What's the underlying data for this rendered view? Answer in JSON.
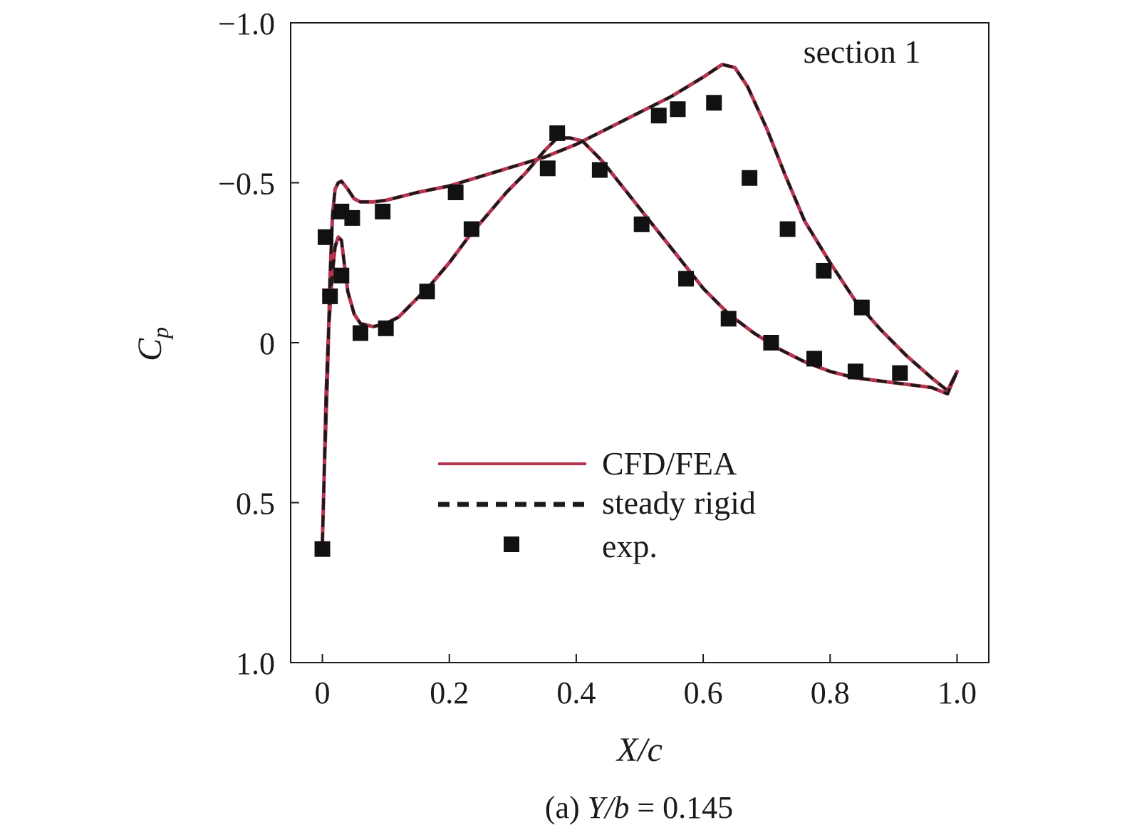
{
  "chart_data": {
    "type": "line",
    "title": "",
    "caption": {
      "prefix": "(a) ",
      "variable": "Y/b",
      "rest": " = 0.145"
    },
    "xlabel": "X/c",
    "ylabel": {
      "main": "C",
      "sub": "p"
    },
    "xlim": [
      -0.05,
      1.05
    ],
    "ylim": [
      1.0,
      -1.0
    ],
    "y_inverted": true,
    "grid": false,
    "x_ticks": [
      {
        "value": 0,
        "label": "0"
      },
      {
        "value": 0.2,
        "label": "0.2"
      },
      {
        "value": 0.4,
        "label": "0.4"
      },
      {
        "value": 0.6,
        "label": "0.6"
      },
      {
        "value": 0.8,
        "label": "0.8"
      },
      {
        "value": 1.0,
        "label": "1.0"
      }
    ],
    "y_ticks": [
      {
        "value": -1.0,
        "label": "−1.0"
      },
      {
        "value": -0.5,
        "label": "−0.5"
      },
      {
        "value": 0,
        "label": "0"
      },
      {
        "value": 0.5,
        "label": "0.5"
      },
      {
        "value": 1.0,
        "label": "1.0"
      }
    ],
    "annotation": "section 1",
    "legend_position": "center-right",
    "series": [
      {
        "name": "CFD/FEA",
        "style": "solid",
        "color": "#b5344f",
        "x": [
          0.0,
          0.003,
          0.008,
          0.012,
          0.016,
          0.02,
          0.025,
          0.03,
          0.04,
          0.05,
          0.06,
          0.08,
          0.1,
          0.12,
          0.15,
          0.2,
          0.25,
          0.3,
          0.35,
          0.4,
          0.45,
          0.5,
          0.55,
          0.6,
          0.63,
          0.65,
          0.67,
          0.7,
          0.73,
          0.76,
          0.8,
          0.84,
          0.88,
          0.92,
          0.96,
          0.985,
          1.0,
          1.0,
          0.985,
          0.96,
          0.92,
          0.88,
          0.84,
          0.8,
          0.76,
          0.72,
          0.68,
          0.64,
          0.6,
          0.56,
          0.52,
          0.48,
          0.44,
          0.41,
          0.39,
          0.37,
          0.35,
          0.32,
          0.29,
          0.26,
          0.23,
          0.2,
          0.17,
          0.14,
          0.12,
          0.1,
          0.08,
          0.06,
          0.05,
          0.04,
          0.035,
          0.03,
          0.025,
          0.02,
          0.015,
          0.01,
          0.006,
          0.003,
          0.0
        ],
        "y": [
          0.63,
          0.4,
          0.1,
          -0.2,
          -0.4,
          -0.48,
          -0.5,
          -0.505,
          -0.48,
          -0.45,
          -0.44,
          -0.44,
          -0.445,
          -0.455,
          -0.47,
          -0.49,
          -0.52,
          -0.55,
          -0.58,
          -0.62,
          -0.67,
          -0.72,
          -0.77,
          -0.83,
          -0.87,
          -0.86,
          -0.8,
          -0.67,
          -0.52,
          -0.38,
          -0.25,
          -0.13,
          -0.04,
          0.04,
          0.11,
          0.15,
          0.09,
          0.09,
          0.16,
          0.14,
          0.13,
          0.12,
          0.11,
          0.09,
          0.06,
          0.02,
          -0.03,
          -0.09,
          -0.17,
          -0.27,
          -0.37,
          -0.47,
          -0.57,
          -0.63,
          -0.64,
          -0.64,
          -0.6,
          -0.53,
          -0.47,
          -0.4,
          -0.33,
          -0.25,
          -0.18,
          -0.12,
          -0.08,
          -0.06,
          -0.05,
          -0.06,
          -0.09,
          -0.16,
          -0.24,
          -0.32,
          -0.33,
          -0.3,
          -0.2,
          -0.05,
          0.15,
          0.4,
          0.63
        ]
      },
      {
        "name": "steady rigid",
        "style": "dashed",
        "color": "#1a1a1a",
        "x": [
          0.0,
          0.003,
          0.008,
          0.012,
          0.016,
          0.02,
          0.025,
          0.03,
          0.04,
          0.05,
          0.06,
          0.08,
          0.1,
          0.12,
          0.15,
          0.2,
          0.25,
          0.3,
          0.35,
          0.4,
          0.45,
          0.5,
          0.55,
          0.6,
          0.63,
          0.65,
          0.67,
          0.7,
          0.73,
          0.76,
          0.8,
          0.84,
          0.88,
          0.92,
          0.96,
          0.985,
          1.0,
          1.0,
          0.985,
          0.96,
          0.92,
          0.88,
          0.84,
          0.8,
          0.76,
          0.72,
          0.68,
          0.64,
          0.6,
          0.56,
          0.52,
          0.48,
          0.44,
          0.41,
          0.39,
          0.37,
          0.35,
          0.32,
          0.29,
          0.26,
          0.23,
          0.2,
          0.17,
          0.14,
          0.12,
          0.1,
          0.08,
          0.06,
          0.05,
          0.04,
          0.035,
          0.03,
          0.025,
          0.02,
          0.015,
          0.01,
          0.006,
          0.003,
          0.0
        ],
        "y": [
          0.63,
          0.4,
          0.1,
          -0.2,
          -0.4,
          -0.48,
          -0.5,
          -0.505,
          -0.48,
          -0.45,
          -0.44,
          -0.44,
          -0.445,
          -0.455,
          -0.47,
          -0.49,
          -0.52,
          -0.55,
          -0.58,
          -0.62,
          -0.67,
          -0.72,
          -0.77,
          -0.83,
          -0.87,
          -0.86,
          -0.8,
          -0.67,
          -0.52,
          -0.38,
          -0.25,
          -0.13,
          -0.04,
          0.04,
          0.11,
          0.15,
          0.09,
          0.09,
          0.16,
          0.14,
          0.13,
          0.12,
          0.11,
          0.09,
          0.06,
          0.02,
          -0.03,
          -0.09,
          -0.17,
          -0.27,
          -0.37,
          -0.47,
          -0.57,
          -0.63,
          -0.64,
          -0.64,
          -0.6,
          -0.53,
          -0.47,
          -0.4,
          -0.33,
          -0.25,
          -0.18,
          -0.12,
          -0.08,
          -0.06,
          -0.05,
          -0.06,
          -0.09,
          -0.16,
          -0.24,
          -0.32,
          -0.33,
          -0.3,
          -0.2,
          -0.05,
          0.15,
          0.4,
          0.63
        ]
      },
      {
        "name": "exp.",
        "style": "markers",
        "color": "#111111",
        "x": [
          0.0,
          0.005,
          0.012,
          0.03,
          0.03,
          0.047,
          0.06,
          0.095,
          0.1,
          0.165,
          0.21,
          0.235,
          0.355,
          0.37,
          0.437,
          0.503,
          0.53,
          0.56,
          0.573,
          0.617,
          0.64,
          0.673,
          0.707,
          0.733,
          0.775,
          0.79,
          0.84,
          0.85,
          0.91
        ],
        "y": [
          0.645,
          -0.33,
          -0.145,
          -0.41,
          -0.21,
          -0.39,
          -0.03,
          -0.41,
          -0.045,
          -0.16,
          -0.47,
          -0.355,
          -0.545,
          -0.655,
          -0.54,
          -0.37,
          -0.71,
          -0.73,
          -0.2,
          -0.75,
          -0.075,
          -0.515,
          0.0,
          -0.355,
          0.05,
          -0.225,
          0.09,
          -0.11,
          0.095
        ]
      }
    ]
  }
}
